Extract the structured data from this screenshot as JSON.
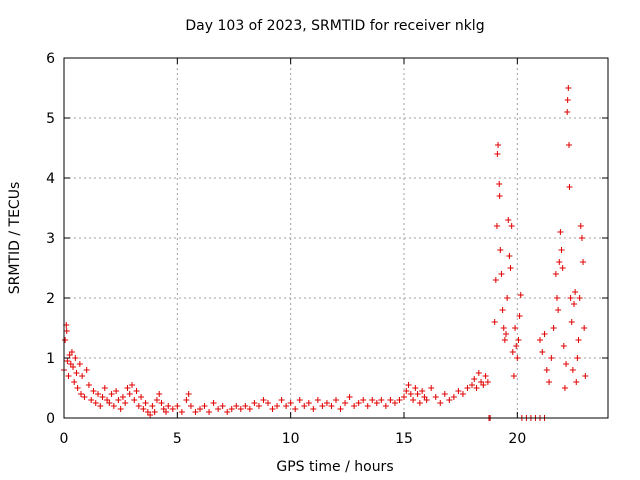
{
  "chart_data": {
    "type": "scatter",
    "title": "Day 103 of 2023, SRMTID for receiver nklg",
    "xlabel": "GPS time / hours",
    "ylabel": "SRMTID / TECUs",
    "xlim": [
      0,
      24
    ],
    "ylim": [
      0,
      6
    ],
    "xticks": [
      0,
      5,
      10,
      15,
      20
    ],
    "yticks": [
      0,
      1,
      2,
      3,
      4,
      5,
      6
    ],
    "xtick_labels": [
      "0",
      "5",
      "10",
      "15",
      "20"
    ],
    "ytick_labels": [
      "0",
      "1",
      "2",
      "3",
      "4",
      "5",
      "6"
    ],
    "grid": true,
    "marker": "+",
    "series": [
      {
        "name": "SRMTID",
        "color": "#e00000",
        "points": [
          [
            0.0,
            0.8
          ],
          [
            0.05,
            1.3
          ],
          [
            0.1,
            1.55
          ],
          [
            0.12,
            1.45
          ],
          [
            0.15,
            0.95
          ],
          [
            0.2,
            0.7
          ],
          [
            0.25,
            1.05
          ],
          [
            0.3,
            0.9
          ],
          [
            0.35,
            1.1
          ],
          [
            0.4,
            0.85
          ],
          [
            0.45,
            0.6
          ],
          [
            0.5,
            1.0
          ],
          [
            0.55,
            0.75
          ],
          [
            0.6,
            0.5
          ],
          [
            0.7,
            0.9
          ],
          [
            0.75,
            0.4
          ],
          [
            0.8,
            0.7
          ],
          [
            0.9,
            0.35
          ],
          [
            1.0,
            0.8
          ],
          [
            1.1,
            0.55
          ],
          [
            1.2,
            0.3
          ],
          [
            1.3,
            0.45
          ],
          [
            1.4,
            0.25
          ],
          [
            1.5,
            0.4
          ],
          [
            1.6,
            0.2
          ],
          [
            1.7,
            0.35
          ],
          [
            1.8,
            0.5
          ],
          [
            1.9,
            0.3
          ],
          [
            2.0,
            0.25
          ],
          [
            2.1,
            0.4
          ],
          [
            2.2,
            0.2
          ],
          [
            2.3,
            0.45
          ],
          [
            2.4,
            0.3
          ],
          [
            2.5,
            0.15
          ],
          [
            2.6,
            0.35
          ],
          [
            2.7,
            0.25
          ],
          [
            2.8,
            0.5
          ],
          [
            2.9,
            0.4
          ],
          [
            3.0,
            0.55
          ],
          [
            3.1,
            0.3
          ],
          [
            3.2,
            0.45
          ],
          [
            3.3,
            0.2
          ],
          [
            3.4,
            0.35
          ],
          [
            3.5,
            0.15
          ],
          [
            3.6,
            0.25
          ],
          [
            3.7,
            0.1
          ],
          [
            3.8,
            0.05
          ],
          [
            3.9,
            0.2
          ],
          [
            4.0,
            0.1
          ],
          [
            4.1,
            0.3
          ],
          [
            4.2,
            0.4
          ],
          [
            4.3,
            0.25
          ],
          [
            4.4,
            0.15
          ],
          [
            4.5,
            0.1
          ],
          [
            4.6,
            0.2
          ],
          [
            4.8,
            0.15
          ],
          [
            5.0,
            0.2
          ],
          [
            5.2,
            0.1
          ],
          [
            5.4,
            0.3
          ],
          [
            5.5,
            0.4
          ],
          [
            5.6,
            0.2
          ],
          [
            5.8,
            0.1
          ],
          [
            6.0,
            0.15
          ],
          [
            6.2,
            0.2
          ],
          [
            6.4,
            0.1
          ],
          [
            6.6,
            0.25
          ],
          [
            6.8,
            0.15
          ],
          [
            7.0,
            0.2
          ],
          [
            7.2,
            0.1
          ],
          [
            7.4,
            0.15
          ],
          [
            7.6,
            0.2
          ],
          [
            7.8,
            0.15
          ],
          [
            8.0,
            0.2
          ],
          [
            8.2,
            0.15
          ],
          [
            8.4,
            0.25
          ],
          [
            8.6,
            0.2
          ],
          [
            8.8,
            0.3
          ],
          [
            9.0,
            0.25
          ],
          [
            9.2,
            0.15
          ],
          [
            9.4,
            0.2
          ],
          [
            9.6,
            0.3
          ],
          [
            9.8,
            0.2
          ],
          [
            10.0,
            0.25
          ],
          [
            10.2,
            0.15
          ],
          [
            10.4,
            0.3
          ],
          [
            10.6,
            0.2
          ],
          [
            10.8,
            0.25
          ],
          [
            11.0,
            0.15
          ],
          [
            11.2,
            0.3
          ],
          [
            11.4,
            0.2
          ],
          [
            11.6,
            0.25
          ],
          [
            11.8,
            0.2
          ],
          [
            12.0,
            0.3
          ],
          [
            12.2,
            0.15
          ],
          [
            12.4,
            0.25
          ],
          [
            12.6,
            0.35
          ],
          [
            12.8,
            0.2
          ],
          [
            13.0,
            0.25
          ],
          [
            13.2,
            0.3
          ],
          [
            13.4,
            0.2
          ],
          [
            13.6,
            0.3
          ],
          [
            13.8,
            0.25
          ],
          [
            14.0,
            0.3
          ],
          [
            14.2,
            0.2
          ],
          [
            14.4,
            0.3
          ],
          [
            14.6,
            0.25
          ],
          [
            14.8,
            0.3
          ],
          [
            15.0,
            0.35
          ],
          [
            15.1,
            0.45
          ],
          [
            15.2,
            0.55
          ],
          [
            15.3,
            0.4
          ],
          [
            15.4,
            0.3
          ],
          [
            15.5,
            0.5
          ],
          [
            15.6,
            0.4
          ],
          [
            15.7,
            0.25
          ],
          [
            15.8,
            0.45
          ],
          [
            15.9,
            0.35
          ],
          [
            16.0,
            0.3
          ],
          [
            16.2,
            0.5
          ],
          [
            16.4,
            0.35
          ],
          [
            16.6,
            0.25
          ],
          [
            16.8,
            0.4
          ],
          [
            17.0,
            0.3
          ],
          [
            17.2,
            0.35
          ],
          [
            17.4,
            0.45
          ],
          [
            17.6,
            0.4
          ],
          [
            17.8,
            0.5
          ],
          [
            18.0,
            0.55
          ],
          [
            18.1,
            0.65
          ],
          [
            18.2,
            0.5
          ],
          [
            18.3,
            0.75
          ],
          [
            18.4,
            0.6
          ],
          [
            18.5,
            0.55
          ],
          [
            18.6,
            0.7
          ],
          [
            18.7,
            0.6
          ],
          [
            18.75,
            0.0
          ],
          [
            18.8,
            0.0
          ],
          [
            19.0,
            1.6
          ],
          [
            19.05,
            2.3
          ],
          [
            19.1,
            3.2
          ],
          [
            19.12,
            4.4
          ],
          [
            19.15,
            4.55
          ],
          [
            19.2,
            3.9
          ],
          [
            19.22,
            3.7
          ],
          [
            19.25,
            2.8
          ],
          [
            19.3,
            2.4
          ],
          [
            19.35,
            1.8
          ],
          [
            19.4,
            1.5
          ],
          [
            19.45,
            1.3
          ],
          [
            19.5,
            1.4
          ],
          [
            19.55,
            2.0
          ],
          [
            19.6,
            3.3
          ],
          [
            19.65,
            2.7
          ],
          [
            19.7,
            2.5
          ],
          [
            19.75,
            3.2
          ],
          [
            19.8,
            1.1
          ],
          [
            19.85,
            0.7
          ],
          [
            19.9,
            1.5
          ],
          [
            19.95,
            1.2
          ],
          [
            20.0,
            1.0
          ],
          [
            20.05,
            1.3
          ],
          [
            20.1,
            1.7
          ],
          [
            20.15,
            2.05
          ],
          [
            20.2,
            0.0
          ],
          [
            20.4,
            0.0
          ],
          [
            20.6,
            0.0
          ],
          [
            20.8,
            0.0
          ],
          [
            21.0,
            0.0
          ],
          [
            21.2,
            0.0
          ],
          [
            21.0,
            1.3
          ],
          [
            21.1,
            1.1
          ],
          [
            21.2,
            1.4
          ],
          [
            21.3,
            0.8
          ],
          [
            21.4,
            0.6
          ],
          [
            21.5,
            1.0
          ],
          [
            21.6,
            1.5
          ],
          [
            21.7,
            2.4
          ],
          [
            21.75,
            2.0
          ],
          [
            21.8,
            1.8
          ],
          [
            21.85,
            2.6
          ],
          [
            21.9,
            3.1
          ],
          [
            21.95,
            2.8
          ],
          [
            22.0,
            2.5
          ],
          [
            22.05,
            1.2
          ],
          [
            22.1,
            0.5
          ],
          [
            22.15,
            0.9
          ],
          [
            22.2,
            5.1
          ],
          [
            22.22,
            5.3
          ],
          [
            22.25,
            5.5
          ],
          [
            22.28,
            4.55
          ],
          [
            22.3,
            3.85
          ],
          [
            22.35,
            2.0
          ],
          [
            22.4,
            1.6
          ],
          [
            22.45,
            0.8
          ],
          [
            22.5,
            1.9
          ],
          [
            22.55,
            2.1
          ],
          [
            22.6,
            0.6
          ],
          [
            22.65,
            1.0
          ],
          [
            22.7,
            1.3
          ],
          [
            22.75,
            2.0
          ],
          [
            22.8,
            3.2
          ],
          [
            22.85,
            3.0
          ],
          [
            22.9,
            2.6
          ],
          [
            22.95,
            1.5
          ],
          [
            23.0,
            0.7
          ]
        ]
      }
    ]
  }
}
